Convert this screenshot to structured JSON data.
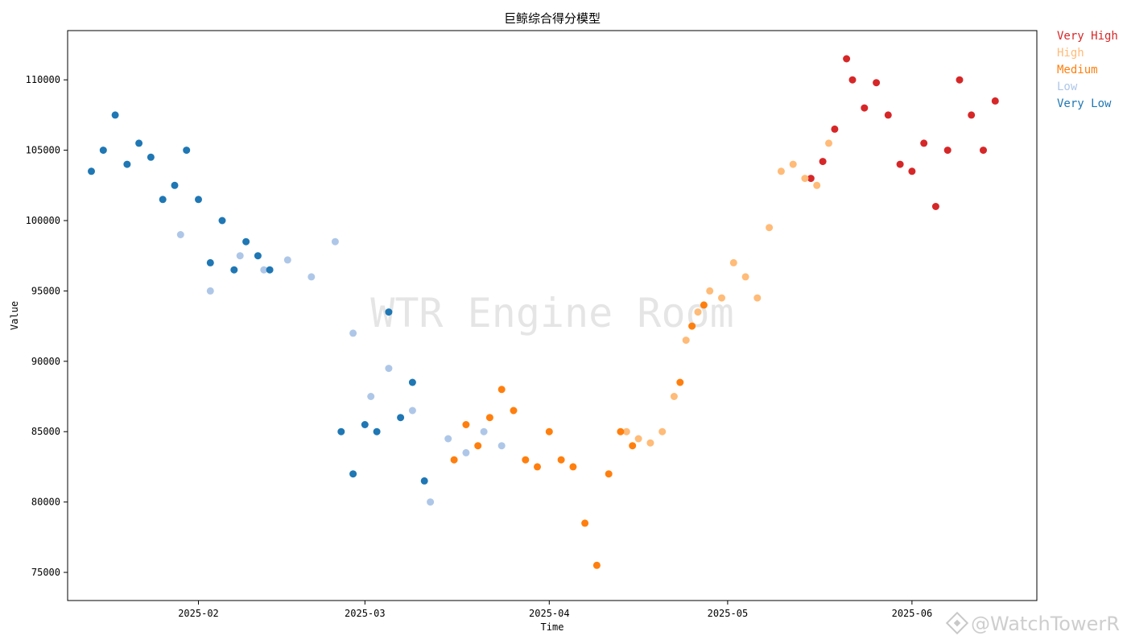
{
  "chart_data": {
    "type": "scatter",
    "title": "巨鲸综合得分模型",
    "xlabel": "Time",
    "ylabel": "Value",
    "xlim": [
      "2025-01-10",
      "2025-06-22"
    ],
    "ylim": [
      73000,
      113500
    ],
    "x_ticks": [
      "2025-02",
      "2025-03",
      "2025-04",
      "2025-05",
      "2025-06"
    ],
    "y_ticks": [
      75000,
      80000,
      85000,
      90000,
      95000,
      100000,
      105000,
      110000
    ],
    "grid": false,
    "legend_position": "outside-top-right",
    "watermark": "WTR Engine Room",
    "corner_watermark": "@WatchTowerR",
    "series": [
      {
        "name": "Very High",
        "color": "#d62728",
        "x": [
          "2025-05-15",
          "2025-05-17",
          "2025-05-19",
          "2025-05-21",
          "2025-05-22",
          "2025-05-24",
          "2025-05-26",
          "2025-05-28",
          "2025-05-30",
          "2025-06-01",
          "2025-06-03",
          "2025-06-05",
          "2025-06-07",
          "2025-06-09",
          "2025-06-11",
          "2025-06-13",
          "2025-06-15"
        ],
        "y": [
          103000,
          104200,
          106500,
          111500,
          110000,
          108000,
          109800,
          107500,
          104000,
          103500,
          105500,
          101000,
          105000,
          110000,
          107500,
          105000,
          108500
        ]
      },
      {
        "name": "High",
        "color": "#ffbb78",
        "x": [
          "2025-04-14",
          "2025-04-16",
          "2025-04-18",
          "2025-04-20",
          "2025-04-22",
          "2025-04-24",
          "2025-04-26",
          "2025-04-28",
          "2025-04-30",
          "2025-05-02",
          "2025-05-04",
          "2025-05-06",
          "2025-05-08",
          "2025-05-10",
          "2025-05-12",
          "2025-05-14",
          "2025-05-16",
          "2025-05-18"
        ],
        "y": [
          85000,
          84500,
          84200,
          85000,
          87500,
          91500,
          93500,
          95000,
          94500,
          97000,
          96000,
          94500,
          99500,
          103500,
          104000,
          103000,
          102500,
          105500
        ]
      },
      {
        "name": "Medium",
        "color": "#ff7f0e",
        "x": [
          "2025-03-16",
          "2025-03-18",
          "2025-03-20",
          "2025-03-22",
          "2025-03-24",
          "2025-03-26",
          "2025-03-28",
          "2025-03-30",
          "2025-04-01",
          "2025-04-03",
          "2025-04-05",
          "2025-04-07",
          "2025-04-09",
          "2025-04-11",
          "2025-04-13",
          "2025-04-15",
          "2025-04-23",
          "2025-04-25",
          "2025-04-27"
        ],
        "y": [
          83000,
          85500,
          84000,
          86000,
          88000,
          86500,
          83000,
          82500,
          85000,
          83000,
          82500,
          78500,
          75500,
          82000,
          85000,
          84000,
          88500,
          92500,
          94000
        ]
      },
      {
        "name": "Low",
        "color": "#aec7e8",
        "x": [
          "2025-01-29",
          "2025-02-03",
          "2025-02-08",
          "2025-02-12",
          "2025-02-16",
          "2025-02-20",
          "2025-02-24",
          "2025-02-27",
          "2025-03-02",
          "2025-03-05",
          "2025-03-09",
          "2025-03-12",
          "2025-03-15",
          "2025-03-18",
          "2025-03-21",
          "2025-03-24"
        ],
        "y": [
          99000,
          95000,
          97500,
          96500,
          97200,
          96000,
          98500,
          92000,
          87500,
          89500,
          86500,
          80000,
          84500,
          83500,
          85000,
          84000
        ]
      },
      {
        "name": "Very Low",
        "color": "#1f77b4",
        "x": [
          "2025-01-14",
          "2025-01-16",
          "2025-01-18",
          "2025-01-20",
          "2025-01-22",
          "2025-01-24",
          "2025-01-26",
          "2025-01-28",
          "2025-01-30",
          "2025-02-01",
          "2025-02-03",
          "2025-02-05",
          "2025-02-07",
          "2025-02-09",
          "2025-02-11",
          "2025-02-13",
          "2025-02-25",
          "2025-02-27",
          "2025-03-01",
          "2025-03-03",
          "2025-03-05",
          "2025-03-07",
          "2025-03-09",
          "2025-03-11"
        ],
        "y": [
          103500,
          105000,
          107500,
          104000,
          105500,
          104500,
          101500,
          102500,
          105000,
          101500,
          97000,
          100000,
          96500,
          98500,
          97500,
          96500,
          85000,
          82000,
          85500,
          85000,
          93500,
          86000,
          88500,
          81500
        ]
      }
    ]
  }
}
